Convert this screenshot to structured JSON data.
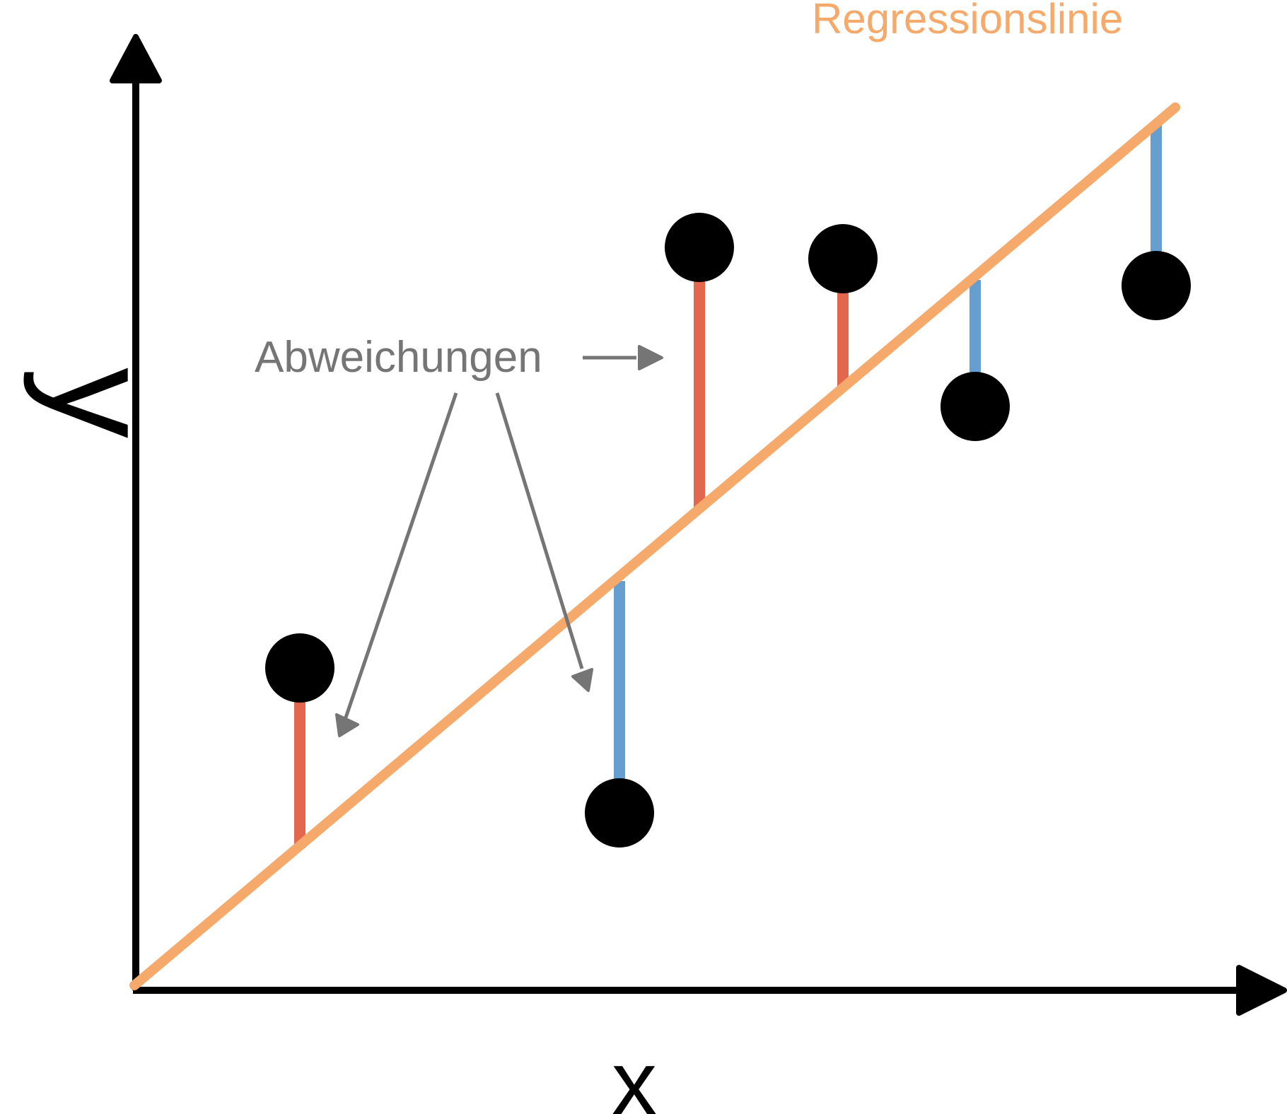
{
  "labels": {
    "regression_line": "Regressionslinie",
    "deviations": "Abweichungen",
    "x_axis": "x",
    "y_axis": "y"
  },
  "colors": {
    "regression_line": "#f5a96b",
    "positive_deviation": "#e2674d",
    "negative_deviation": "#659ecf",
    "points": "#000000",
    "annotation": "#757575",
    "axes": "#000000"
  }
}
